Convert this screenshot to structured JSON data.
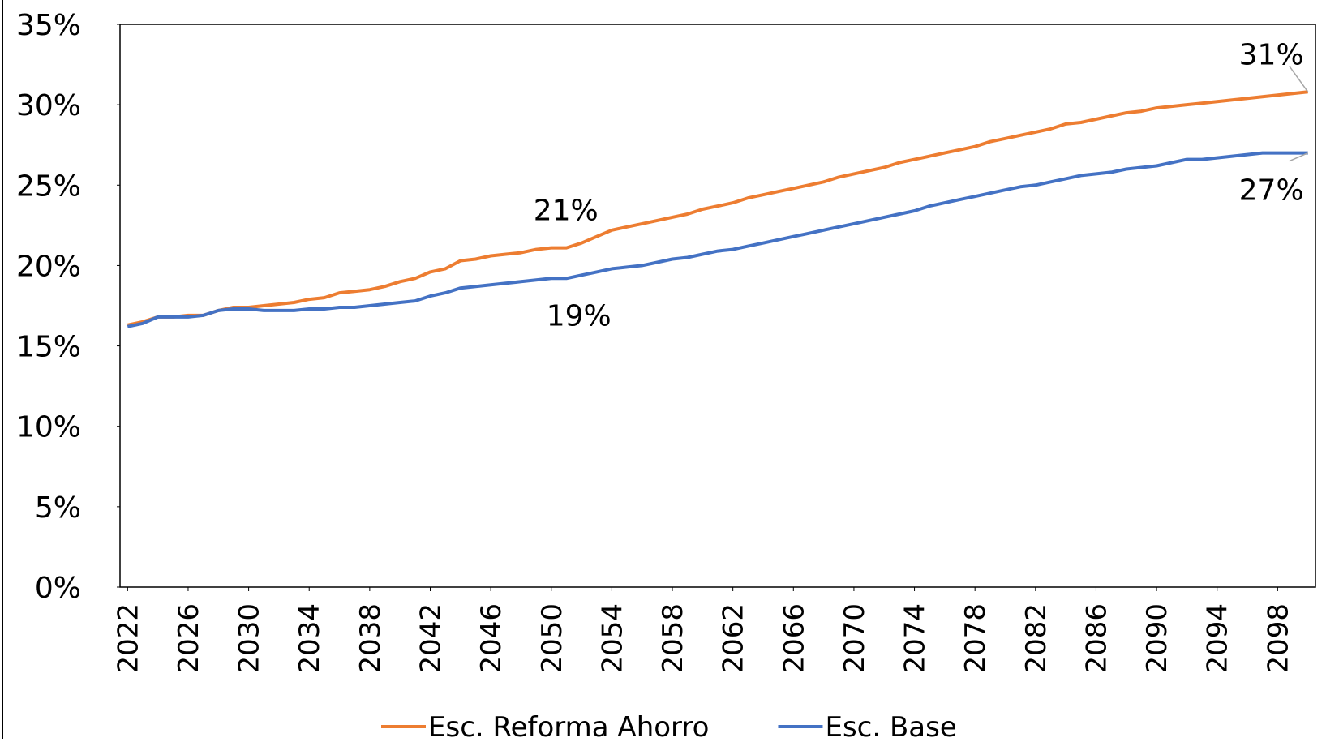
{
  "chart_data": {
    "type": "line",
    "x": [
      2022,
      2023,
      2024,
      2025,
      2026,
      2027,
      2028,
      2029,
      2030,
      2031,
      2032,
      2033,
      2034,
      2035,
      2036,
      2037,
      2038,
      2039,
      2040,
      2041,
      2042,
      2043,
      2044,
      2045,
      2046,
      2047,
      2048,
      2049,
      2050,
      2051,
      2052,
      2053,
      2054,
      2055,
      2056,
      2057,
      2058,
      2059,
      2060,
      2061,
      2062,
      2063,
      2064,
      2065,
      2066,
      2067,
      2068,
      2069,
      2070,
      2071,
      2072,
      2073,
      2074,
      2075,
      2076,
      2077,
      2078,
      2079,
      2080,
      2081,
      2082,
      2083,
      2084,
      2085,
      2086,
      2087,
      2088,
      2089,
      2090,
      2091,
      2092,
      2093,
      2094,
      2095,
      2096,
      2097,
      2098,
      2099,
      2100
    ],
    "xlim": [
      2021.5,
      2100.5
    ],
    "xticks": [
      2022,
      2026,
      2030,
      2034,
      2038,
      2042,
      2046,
      2050,
      2054,
      2058,
      2062,
      2066,
      2070,
      2074,
      2078,
      2082,
      2086,
      2090,
      2094,
      2098
    ],
    "ylim": [
      0,
      35
    ],
    "yticks": [
      {
        "value": 0,
        "label": "0%"
      },
      {
        "value": 5,
        "label": "5%"
      },
      {
        "value": 10,
        "label": "10%"
      },
      {
        "value": 15,
        "label": "15%"
      },
      {
        "value": 20,
        "label": "20%"
      },
      {
        "value": 25,
        "label": "25%"
      },
      {
        "value": 30,
        "label": "30%"
      },
      {
        "value": 35,
        "label": "35%"
      }
    ],
    "grid": false,
    "legend": "bottom",
    "series": [
      {
        "name": "Esc. Reforma Ahorro",
        "color": "#ED7D31",
        "values": [
          16.3,
          16.5,
          16.8,
          16.8,
          16.9,
          16.9,
          17.2,
          17.4,
          17.4,
          17.5,
          17.6,
          17.7,
          17.9,
          18.0,
          18.3,
          18.4,
          18.5,
          18.7,
          19.0,
          19.2,
          19.6,
          19.8,
          20.3,
          20.4,
          20.6,
          20.7,
          20.8,
          21.0,
          21.1,
          21.1,
          21.4,
          21.8,
          22.2,
          22.4,
          22.6,
          22.8,
          23.0,
          23.2,
          23.5,
          23.7,
          23.9,
          24.2,
          24.4,
          24.6,
          24.8,
          25.0,
          25.2,
          25.5,
          25.7,
          25.9,
          26.1,
          26.4,
          26.6,
          26.8,
          27.0,
          27.2,
          27.4,
          27.7,
          27.9,
          28.1,
          28.3,
          28.5,
          28.8,
          28.9,
          29.1,
          29.3,
          29.5,
          29.6,
          29.8,
          29.9,
          30.0,
          30.1,
          30.2,
          30.3,
          30.4,
          30.5,
          30.6,
          30.7,
          30.8
        ],
        "value_labels": [
          null,
          null,
          null,
          null,
          null,
          null,
          null,
          null,
          null,
          null,
          null,
          null,
          null,
          null,
          null,
          null,
          null,
          null,
          null,
          null,
          null,
          null,
          null,
          null,
          null,
          null,
          null,
          null,
          "21%",
          null,
          null,
          null,
          null,
          null,
          null,
          null,
          null,
          null,
          null,
          null,
          null,
          null,
          null,
          null,
          null,
          null,
          null,
          null,
          null,
          null,
          null,
          null,
          null,
          null,
          null,
          null,
          null,
          null,
          null,
          null,
          null,
          null,
          null,
          null,
          null,
          null,
          null,
          null,
          null,
          null,
          null,
          null,
          null,
          null,
          null,
          null,
          null,
          null,
          "31%"
        ]
      },
      {
        "name": "Esc. Base",
        "color": "#4472C4",
        "values": [
          16.2,
          16.4,
          16.8,
          16.8,
          16.8,
          16.9,
          17.2,
          17.3,
          17.3,
          17.2,
          17.2,
          17.2,
          17.3,
          17.3,
          17.4,
          17.4,
          17.5,
          17.6,
          17.7,
          17.8,
          18.1,
          18.3,
          18.6,
          18.7,
          18.8,
          18.9,
          19.0,
          19.1,
          19.2,
          19.2,
          19.4,
          19.6,
          19.8,
          19.9,
          20.0,
          20.2,
          20.4,
          20.5,
          20.7,
          20.9,
          21.0,
          21.2,
          21.4,
          21.6,
          21.8,
          22.0,
          22.2,
          22.4,
          22.6,
          22.8,
          23.0,
          23.2,
          23.4,
          23.7,
          23.9,
          24.1,
          24.3,
          24.5,
          24.7,
          24.9,
          25.0,
          25.2,
          25.4,
          25.6,
          25.7,
          25.8,
          26.0,
          26.1,
          26.2,
          26.4,
          26.6,
          26.6,
          26.7,
          26.8,
          26.9,
          27.0,
          27.0,
          27.0,
          27.0
        ],
        "value_labels": [
          null,
          null,
          null,
          null,
          null,
          null,
          null,
          null,
          null,
          null,
          null,
          null,
          null,
          null,
          null,
          null,
          null,
          null,
          null,
          null,
          null,
          null,
          null,
          null,
          null,
          null,
          null,
          null,
          "19%",
          null,
          null,
          null,
          null,
          null,
          null,
          null,
          null,
          null,
          null,
          null,
          null,
          null,
          null,
          null,
          null,
          null,
          null,
          null,
          null,
          null,
          null,
          null,
          null,
          null,
          null,
          null,
          null,
          null,
          null,
          null,
          null,
          null,
          null,
          null,
          null,
          null,
          null,
          null,
          null,
          null,
          null,
          null,
          null,
          null,
          null,
          null,
          null,
          null,
          "27%"
        ]
      }
    ]
  }
}
